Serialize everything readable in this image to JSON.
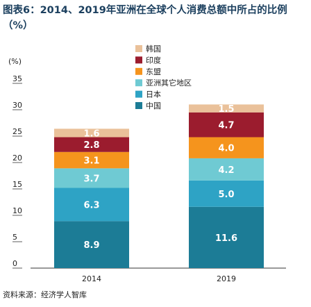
{
  "title": "图表6：2014、2019年亚洲在全球个人消费总额中所占的比例（%）",
  "source": "资料来源：经济学人智库",
  "chart_data": {
    "type": "bar",
    "stacked": true,
    "title": "图表6：2014、2019年亚洲在全球个人消费总额中所占的比例（%）",
    "ylabel": "(%)",
    "categories": [
      "2014",
      "2019"
    ],
    "ylim": [
      0,
      35
    ],
    "yticks": [
      0,
      5,
      10,
      15,
      20,
      25,
      30,
      35
    ],
    "grid": false,
    "legend_position": "top-center",
    "series": [
      {
        "name": "中国",
        "values": [
          8.9,
          11.6
        ],
        "color": "#1c7c96"
      },
      {
        "name": "日本",
        "values": [
          6.3,
          5.0
        ],
        "color": "#2ea3c5"
      },
      {
        "name": "亚洲其它地区",
        "values": [
          3.7,
          4.2
        ],
        "color": "#6fcad3"
      },
      {
        "name": "东盟",
        "values": [
          3.1,
          4.0
        ],
        "color": "#f5941d"
      },
      {
        "name": "印度",
        "values": [
          2.8,
          4.7
        ],
        "color": "#9b1c2e"
      },
      {
        "name": "韩国",
        "values": [
          1.6,
          1.5
        ],
        "color": "#eac19a"
      }
    ],
    "legend_order": [
      "韩国",
      "印度",
      "东盟",
      "亚洲其它地区",
      "日本",
      "中国"
    ]
  }
}
